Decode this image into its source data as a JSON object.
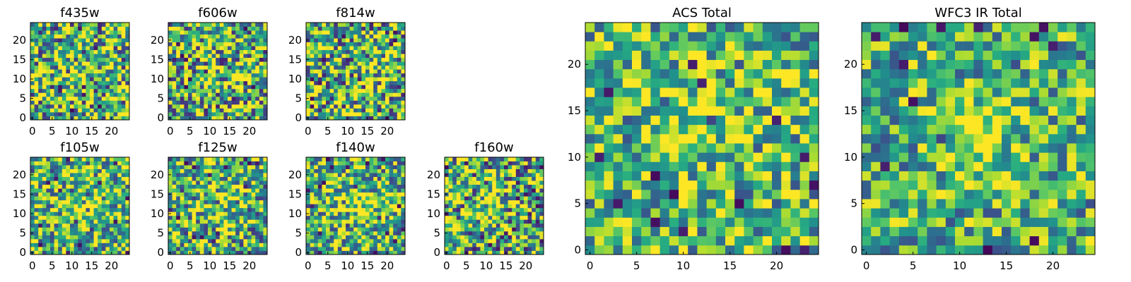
{
  "chart_data": {
    "type": "heatmap",
    "colormap": "viridis",
    "panels": [
      {
        "id": "f435w",
        "title": "f435w",
        "grid_size": 25,
        "xticks": [
          0,
          5,
          10,
          15,
          20
        ],
        "yticks": [
          0,
          5,
          10,
          15,
          20
        ],
        "xlim": [
          -0.5,
          24.5
        ],
        "ylim": [
          -0.5,
          24.5
        ]
      },
      {
        "id": "f606w",
        "title": "f606w",
        "grid_size": 25,
        "xticks": [
          0,
          5,
          10,
          15,
          20
        ],
        "yticks": [
          0,
          5,
          10,
          15,
          20
        ],
        "xlim": [
          -0.5,
          24.5
        ],
        "ylim": [
          -0.5,
          24.5
        ]
      },
      {
        "id": "f814w",
        "title": "f814w",
        "grid_size": 25,
        "xticks": [
          0,
          5,
          10,
          15,
          20
        ],
        "yticks": [
          0,
          5,
          10,
          15,
          20
        ],
        "xlim": [
          -0.5,
          24.5
        ],
        "ylim": [
          -0.5,
          24.5
        ]
      },
      {
        "id": "f105w",
        "title": "f105w",
        "grid_size": 25,
        "xticks": [
          0,
          5,
          10,
          15,
          20
        ],
        "yticks": [
          0,
          5,
          10,
          15,
          20
        ],
        "xlim": [
          -0.5,
          24.5
        ],
        "ylim": [
          -0.5,
          24.5
        ]
      },
      {
        "id": "f125w",
        "title": "f125w",
        "grid_size": 25,
        "xticks": [
          0,
          5,
          10,
          15,
          20
        ],
        "yticks": [
          0,
          5,
          10,
          15,
          20
        ],
        "xlim": [
          -0.5,
          24.5
        ],
        "ylim": [
          -0.5,
          24.5
        ]
      },
      {
        "id": "f140w",
        "title": "f140w",
        "grid_size": 25,
        "xticks": [
          0,
          5,
          10,
          15,
          20
        ],
        "yticks": [
          0,
          5,
          10,
          15,
          20
        ],
        "xlim": [
          -0.5,
          24.5
        ],
        "ylim": [
          -0.5,
          24.5
        ]
      },
      {
        "id": "f160w",
        "title": "f160w",
        "grid_size": 25,
        "xticks": [
          0,
          5,
          10,
          15,
          20
        ],
        "yticks": [
          0,
          5,
          10,
          15,
          20
        ],
        "xlim": [
          -0.5,
          24.5
        ],
        "ylim": [
          -0.5,
          24.5
        ]
      },
      {
        "id": "acs-total",
        "title": "ACS Total",
        "grid_size": 25,
        "xticks": [
          0,
          5,
          10,
          15,
          20
        ],
        "yticks": [
          0,
          5,
          10,
          15,
          20
        ],
        "xlim": [
          -0.5,
          24.5
        ],
        "ylim": [
          -0.5,
          24.5
        ]
      },
      {
        "id": "wfc3-ir-total",
        "title": "WFC3 IR Total",
        "grid_size": 25,
        "xticks": [
          0,
          5,
          10,
          15,
          20
        ],
        "yticks": [
          0,
          5,
          10,
          15,
          20
        ],
        "xlim": [
          -0.5,
          24.5
        ],
        "ylim": [
          -0.5,
          24.5
        ]
      }
    ]
  }
}
